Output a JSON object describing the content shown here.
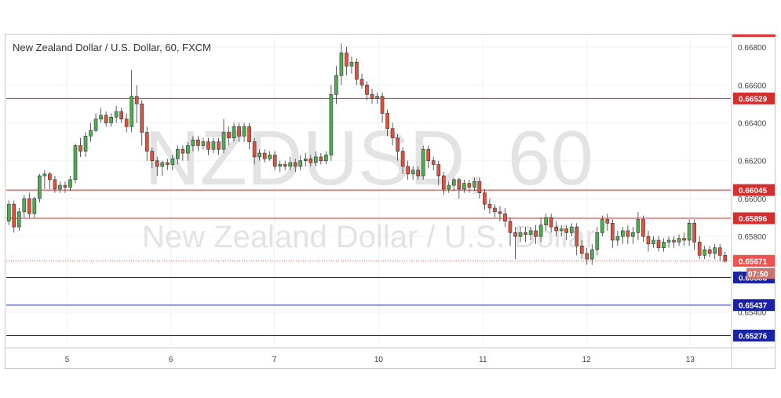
{
  "header": {
    "title": "New Zealand Dollar / U.S. Dollar, 60, FXCM"
  },
  "watermark": {
    "symbol_text": "NZDUSD, 60",
    "name_text": "New Zealand Dollar / U.S. Dollar"
  },
  "colors": {
    "up": "#4caf50",
    "down": "#e0523e",
    "resistance": "#d32f2f",
    "support": "#1a23a8",
    "last_price": "#ef5350"
  },
  "chart_data": {
    "type": "candlestick",
    "title": "New Zealand Dollar / U.S. Dollar, 60, FXCM",
    "symbol": "NZDUSD",
    "interval": "60",
    "source": "FXCM",
    "ylim": [
      0.6522,
      0.6685
    ],
    "y_ticks": [
      "0.66800",
      "0.66600",
      "0.66400",
      "0.66200",
      "0.66000",
      "0.65800",
      "0.65400"
    ],
    "x_ticks": [
      "5",
      "6",
      "7",
      "10",
      "11",
      "12",
      "13"
    ],
    "resistance_levels": [
      "0.66529",
      "0.66045",
      "0.65896"
    ],
    "support_levels": [
      "0.65583",
      "0.65437",
      "0.65276"
    ],
    "last_price": "0.65671",
    "countdown": "07:50",
    "countdown_prefix": "0",
    "grid": true,
    "candles": [
      [
        0.6588,
        0.6597,
        0.6586,
        0.6599
      ],
      [
        0.6597,
        0.6585,
        0.6582,
        0.6599
      ],
      [
        0.6585,
        0.6593,
        0.6583,
        0.6595
      ],
      [
        0.6593,
        0.66,
        0.659,
        0.6602
      ],
      [
        0.66,
        0.6592,
        0.659,
        0.6603
      ],
      [
        0.6592,
        0.66,
        0.659,
        0.6601
      ],
      [
        0.66,
        0.6612,
        0.6598,
        0.6613
      ],
      [
        0.6612,
        0.6613,
        0.6605,
        0.6615
      ],
      [
        0.6613,
        0.661,
        0.6605,
        0.6614
      ],
      [
        0.661,
        0.6605,
        0.6603,
        0.6612
      ],
      [
        0.6605,
        0.6607,
        0.6603,
        0.6609
      ],
      [
        0.6607,
        0.6606,
        0.6603,
        0.6609
      ],
      [
        0.6606,
        0.661,
        0.6604,
        0.6612
      ],
      [
        0.661,
        0.6628,
        0.6608,
        0.6629
      ],
      [
        0.6628,
        0.6625,
        0.6622,
        0.6632
      ],
      [
        0.6625,
        0.6633,
        0.6622,
        0.6635
      ],
      [
        0.6633,
        0.6636,
        0.663,
        0.664
      ],
      [
        0.6636,
        0.6642,
        0.6635,
        0.6645
      ],
      [
        0.6642,
        0.6644,
        0.664,
        0.6648
      ],
      [
        0.6644,
        0.664,
        0.6638,
        0.6646
      ],
      [
        0.664,
        0.6643,
        0.6638,
        0.6645
      ],
      [
        0.6643,
        0.6646,
        0.664,
        0.6649
      ],
      [
        0.6646,
        0.6642,
        0.664,
        0.6648
      ],
      [
        0.6642,
        0.6638,
        0.6635,
        0.6645
      ],
      [
        0.6638,
        0.6654,
        0.6635,
        0.6668
      ],
      [
        0.6654,
        0.665,
        0.664,
        0.666
      ],
      [
        0.665,
        0.6635,
        0.6628,
        0.6652
      ],
      [
        0.6635,
        0.6625,
        0.662,
        0.6638
      ],
      [
        0.6625,
        0.662,
        0.6616,
        0.6627
      ],
      [
        0.662,
        0.6617,
        0.6612,
        0.6622
      ],
      [
        0.6617,
        0.6619,
        0.6612,
        0.662
      ],
      [
        0.6619,
        0.6618,
        0.6615,
        0.6621
      ],
      [
        0.6618,
        0.6621,
        0.6615,
        0.6623
      ],
      [
        0.6621,
        0.6626,
        0.6618,
        0.6628
      ],
      [
        0.6626,
        0.6624,
        0.662,
        0.6628
      ],
      [
        0.6624,
        0.6628,
        0.662,
        0.663
      ],
      [
        0.6628,
        0.6631,
        0.6625,
        0.6633
      ],
      [
        0.6631,
        0.6628,
        0.6625,
        0.6633
      ],
      [
        0.6628,
        0.663,
        0.6626,
        0.6632
      ],
      [
        0.663,
        0.6626,
        0.6623,
        0.6632
      ],
      [
        0.6626,
        0.663,
        0.6624,
        0.6632
      ],
      [
        0.663,
        0.6626,
        0.6623,
        0.6632
      ],
      [
        0.6626,
        0.6635,
        0.6624,
        0.6642
      ],
      [
        0.6635,
        0.6632,
        0.6628,
        0.6638
      ],
      [
        0.6632,
        0.6638,
        0.663,
        0.664
      ],
      [
        0.6638,
        0.6633,
        0.663,
        0.664
      ],
      [
        0.6633,
        0.6638,
        0.663,
        0.664
      ],
      [
        0.6638,
        0.663,
        0.6626,
        0.664
      ],
      [
        0.663,
        0.6622,
        0.6618,
        0.6632
      ],
      [
        0.6622,
        0.6624,
        0.662,
        0.6626
      ],
      [
        0.6624,
        0.6621,
        0.6619,
        0.6626
      ],
      [
        0.6621,
        0.6623,
        0.662,
        0.6625
      ],
      [
        0.6623,
        0.6617,
        0.6615,
        0.6625
      ],
      [
        0.6617,
        0.6618,
        0.6614,
        0.662
      ],
      [
        0.6618,
        0.6617,
        0.6615,
        0.662
      ],
      [
        0.6617,
        0.6619,
        0.6615,
        0.6622
      ],
      [
        0.6619,
        0.6617,
        0.6614,
        0.6621
      ],
      [
        0.6617,
        0.662,
        0.6615,
        0.6623
      ],
      [
        0.662,
        0.6621,
        0.6617,
        0.6624
      ],
      [
        0.6621,
        0.6619,
        0.6617,
        0.6623
      ],
      [
        0.6619,
        0.6622,
        0.6617,
        0.6625
      ],
      [
        0.6622,
        0.662,
        0.6618,
        0.6624
      ],
      [
        0.662,
        0.6623,
        0.6618,
        0.6625
      ],
      [
        0.6623,
        0.6655,
        0.662,
        0.666
      ],
      [
        0.6655,
        0.6665,
        0.665,
        0.667
      ],
      [
        0.6665,
        0.6677,
        0.666,
        0.6682
      ],
      [
        0.6677,
        0.667,
        0.6665,
        0.668
      ],
      [
        0.667,
        0.6672,
        0.6666,
        0.6675
      ],
      [
        0.6672,
        0.6663,
        0.666,
        0.6674
      ],
      [
        0.6663,
        0.666,
        0.6658,
        0.6666
      ],
      [
        0.666,
        0.6655,
        0.6652,
        0.6662
      ],
      [
        0.6655,
        0.6653,
        0.665,
        0.6658
      ],
      [
        0.6653,
        0.6654,
        0.665,
        0.6656
      ],
      [
        0.6654,
        0.6645,
        0.664,
        0.6656
      ],
      [
        0.6645,
        0.6637,
        0.6633,
        0.6647
      ],
      [
        0.6637,
        0.6632,
        0.6628,
        0.664
      ],
      [
        0.6632,
        0.6625,
        0.662,
        0.6634
      ],
      [
        0.6625,
        0.6617,
        0.6613,
        0.6627
      ],
      [
        0.6617,
        0.6613,
        0.661,
        0.662
      ],
      [
        0.6613,
        0.6615,
        0.661,
        0.6617
      ],
      [
        0.6615,
        0.6612,
        0.661,
        0.6617
      ],
      [
        0.6612,
        0.6626,
        0.661,
        0.6628
      ],
      [
        0.6626,
        0.662,
        0.6616,
        0.6628
      ],
      [
        0.662,
        0.6618,
        0.6615,
        0.6622
      ],
      [
        0.6618,
        0.6612,
        0.6607,
        0.662
      ],
      [
        0.6612,
        0.6605,
        0.6602,
        0.6614
      ],
      [
        0.6605,
        0.6607,
        0.6603,
        0.6609
      ],
      [
        0.6607,
        0.661,
        0.6604,
        0.6611
      ],
      [
        0.661,
        0.6605,
        0.66,
        0.6611
      ],
      [
        0.6605,
        0.6608,
        0.6603,
        0.661
      ],
      [
        0.6608,
        0.6606,
        0.6603,
        0.661
      ],
      [
        0.6606,
        0.6609,
        0.6604,
        0.6611
      ],
      [
        0.6609,
        0.6603,
        0.66,
        0.6611
      ],
      [
        0.6603,
        0.6597,
        0.6594,
        0.6605
      ],
      [
        0.6597,
        0.6595,
        0.6592,
        0.66
      ],
      [
        0.6595,
        0.6593,
        0.659,
        0.6597
      ],
      [
        0.6593,
        0.6592,
        0.6588,
        0.6596
      ],
      [
        0.6592,
        0.6588,
        0.6585,
        0.6595
      ],
      [
        0.6588,
        0.6582,
        0.6575,
        0.659
      ],
      [
        0.6582,
        0.658,
        0.6568,
        0.6585
      ],
      [
        0.658,
        0.6582,
        0.6577,
        0.6585
      ],
      [
        0.6582,
        0.6581,
        0.6577,
        0.6585
      ],
      [
        0.6581,
        0.6583,
        0.6578,
        0.6585
      ],
      [
        0.6583,
        0.658,
        0.6576,
        0.6586
      ],
      [
        0.658,
        0.6586,
        0.6577,
        0.659
      ],
      [
        0.6586,
        0.659,
        0.6583,
        0.6592
      ],
      [
        0.659,
        0.6585,
        0.6582,
        0.6592
      ],
      [
        0.6585,
        0.6583,
        0.658,
        0.6588
      ],
      [
        0.6583,
        0.6584,
        0.658,
        0.6586
      ],
      [
        0.6584,
        0.6582,
        0.6578,
        0.6586
      ],
      [
        0.6582,
        0.6585,
        0.658,
        0.6587
      ],
      [
        0.6585,
        0.6575,
        0.657,
        0.6587
      ],
      [
        0.6575,
        0.6571,
        0.6568,
        0.6578
      ],
      [
        0.6571,
        0.6568,
        0.6565,
        0.6574
      ],
      [
        0.6568,
        0.6573,
        0.6565,
        0.6576
      ],
      [
        0.6573,
        0.6582,
        0.657,
        0.6585
      ],
      [
        0.6582,
        0.6589,
        0.658,
        0.6591
      ],
      [
        0.6589,
        0.6587,
        0.6583,
        0.6592
      ],
      [
        0.6587,
        0.6578,
        0.6574,
        0.6589
      ],
      [
        0.6578,
        0.658,
        0.6575,
        0.6583
      ],
      [
        0.658,
        0.6583,
        0.6576,
        0.6585
      ],
      [
        0.6583,
        0.658,
        0.6576,
        0.6586
      ],
      [
        0.658,
        0.6582,
        0.6576,
        0.6585
      ],
      [
        0.6582,
        0.6589,
        0.6578,
        0.6593
      ],
      [
        0.6589,
        0.658,
        0.6577,
        0.6591
      ],
      [
        0.658,
        0.6576,
        0.6572,
        0.6583
      ],
      [
        0.6576,
        0.6578,
        0.6574,
        0.658
      ],
      [
        0.6578,
        0.6574,
        0.6572,
        0.658
      ],
      [
        0.6574,
        0.6577,
        0.6572,
        0.6579
      ],
      [
        0.6577,
        0.6578,
        0.6574,
        0.658
      ],
      [
        0.6578,
        0.6577,
        0.6574,
        0.658
      ],
      [
        0.6577,
        0.6579,
        0.6575,
        0.6581
      ],
      [
        0.6579,
        0.6578,
        0.6575,
        0.6582
      ],
      [
        0.6578,
        0.6587,
        0.6575,
        0.6589
      ],
      [
        0.6587,
        0.6577,
        0.6573,
        0.6589
      ],
      [
        0.6577,
        0.657,
        0.6568,
        0.658
      ],
      [
        0.657,
        0.6573,
        0.6568,
        0.6575
      ],
      [
        0.6573,
        0.6571,
        0.6569,
        0.6575
      ],
      [
        0.6571,
        0.6574,
        0.6568,
        0.6576
      ],
      [
        0.6574,
        0.657,
        0.6567,
        0.6576
      ],
      [
        0.657,
        0.6567,
        0.6566,
        0.6572
      ]
    ]
  }
}
